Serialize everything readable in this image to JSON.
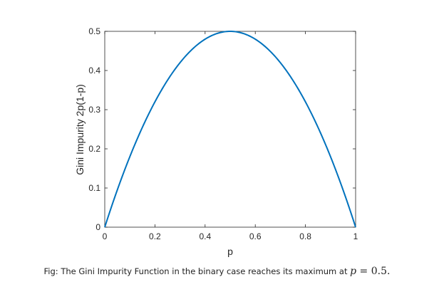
{
  "chart_data": {
    "type": "line",
    "title": "",
    "xlabel": "p",
    "ylabel": "Gini Impurity 2p(1-p)",
    "xlim": [
      0,
      1
    ],
    "ylim": [
      0,
      0.5
    ],
    "xticks": [
      0,
      0.2,
      0.4,
      0.6,
      0.8,
      1
    ],
    "xtick_labels": [
      "0",
      "0.2",
      "0.4",
      "0.6",
      "0.8",
      "1"
    ],
    "yticks": [
      0,
      0.1,
      0.2,
      0.3,
      0.4,
      0.5
    ],
    "ytick_labels": [
      "0",
      "0.1",
      "0.2",
      "0.3",
      "0.4",
      "0.5"
    ],
    "grid": false,
    "legend": "none",
    "series": [
      {
        "color": "#0072BD",
        "x": [
          0,
          0.05,
          0.1,
          0.15,
          0.2,
          0.25,
          0.3,
          0.35,
          0.4,
          0.45,
          0.5,
          0.55,
          0.6,
          0.65,
          0.7,
          0.75,
          0.8,
          0.85,
          0.9,
          0.95,
          1
        ],
        "y": [
          0,
          0.095,
          0.18,
          0.255,
          0.32,
          0.375,
          0.42,
          0.455,
          0.48,
          0.495,
          0.5,
          0.495,
          0.48,
          0.455,
          0.42,
          0.375,
          0.32,
          0.255,
          0.18,
          0.095,
          0
        ]
      }
    ]
  },
  "caption": {
    "text": "Fig: The Gini Impurity Function in the binary case reaches its maximum at ",
    "math_var": "p",
    "math_rest": " = 0.5."
  }
}
